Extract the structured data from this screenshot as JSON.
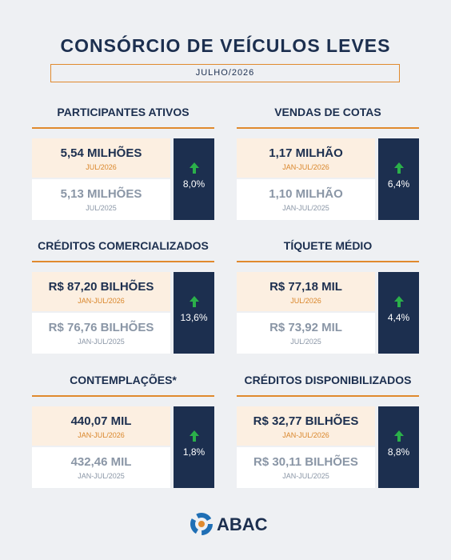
{
  "header": {
    "title": "CONSÓRCIO DE VEÍCULOS LEVES",
    "subtitle": "JULHO/2026"
  },
  "cards": [
    {
      "title": "PARTICIPANTES ATIVOS",
      "current_value": "5,54 MILHÕES",
      "current_period": "JUL/2026",
      "previous_value": "5,13 MILHÕES",
      "previous_period": "JUL/2025",
      "change": "8,0%"
    },
    {
      "title": "VENDAS DE COTAS",
      "current_value": "1,17 MILHÃO",
      "current_period": "JAN-JUL/2026",
      "previous_value": "1,10 MILHÃO",
      "previous_period": "JAN-JUL/2025",
      "change": "6,4%"
    },
    {
      "title": "CRÉDITOS COMERCIALIZADOS",
      "current_value": "R$ 87,20 BILHÕES",
      "current_period": "JAN-JUL/2026",
      "previous_value": "R$ 76,76 BILHÕES",
      "previous_period": "JAN-JUL/2025",
      "change": "13,6%"
    },
    {
      "title": "TÍQUETE MÉDIO",
      "current_value": "R$ 77,18 MIL",
      "current_period": "JUL/2026",
      "previous_value": "R$ 73,92 MIL",
      "previous_period": "JUL/2025",
      "change": "4,4%"
    },
    {
      "title": "CONTEMPLAÇÕES*",
      "current_value": "440,07 MIL",
      "current_period": "JAN-JUL/2026",
      "previous_value": "432,46 MIL",
      "previous_period": "JAN-JUL/2025",
      "change": "1,8%"
    },
    {
      "title": "CRÉDITOS DISPONIBILIZADOS",
      "current_value": "R$ 32,77 BILHÕES",
      "current_period": "JAN-JUL/2026",
      "previous_value": "R$ 30,11 BILHÕES",
      "previous_period": "JAN-JUL/2025",
      "change": "8,8%"
    }
  ],
  "footer": {
    "logo": "ABAC"
  }
}
